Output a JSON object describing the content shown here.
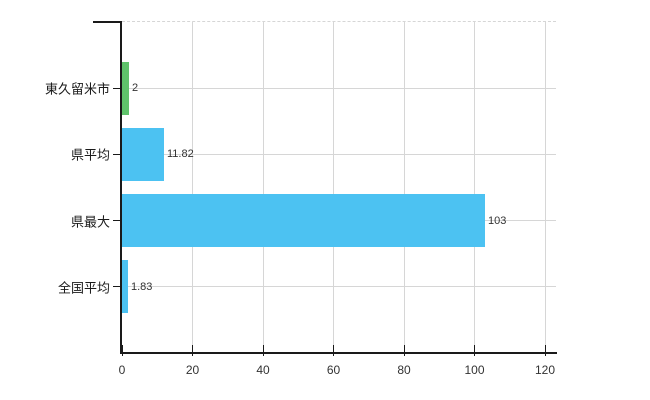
{
  "chart_data": {
    "type": "bar",
    "orientation": "horizontal",
    "title": "",
    "categories": [
      "東久留米市",
      "県平均",
      "県最大",
      "全国平均"
    ],
    "values": [
      2,
      11.82,
      103,
      1.83
    ],
    "value_labels": [
      "2",
      "11.82",
      "103",
      "1.83"
    ],
    "bar_colors": [
      "#5fc36b",
      "#4cc2f2",
      "#4cc2f2",
      "#4cc2f2"
    ],
    "x_ticks": [
      "0",
      "20",
      "40",
      "60",
      "80",
      "100",
      "120"
    ],
    "xlim": [
      0,
      120
    ],
    "grid": true,
    "legend": false
  },
  "colors": {
    "bar_blue": "#4cc2f2",
    "bar_green": "#5fc36b",
    "grid": "#d6d6d6",
    "axis": "#1a1a1a",
    "category_label": "#1a1a1a",
    "value_label": "#333333",
    "tick_label": "#333333",
    "background": "#ffffff"
  }
}
